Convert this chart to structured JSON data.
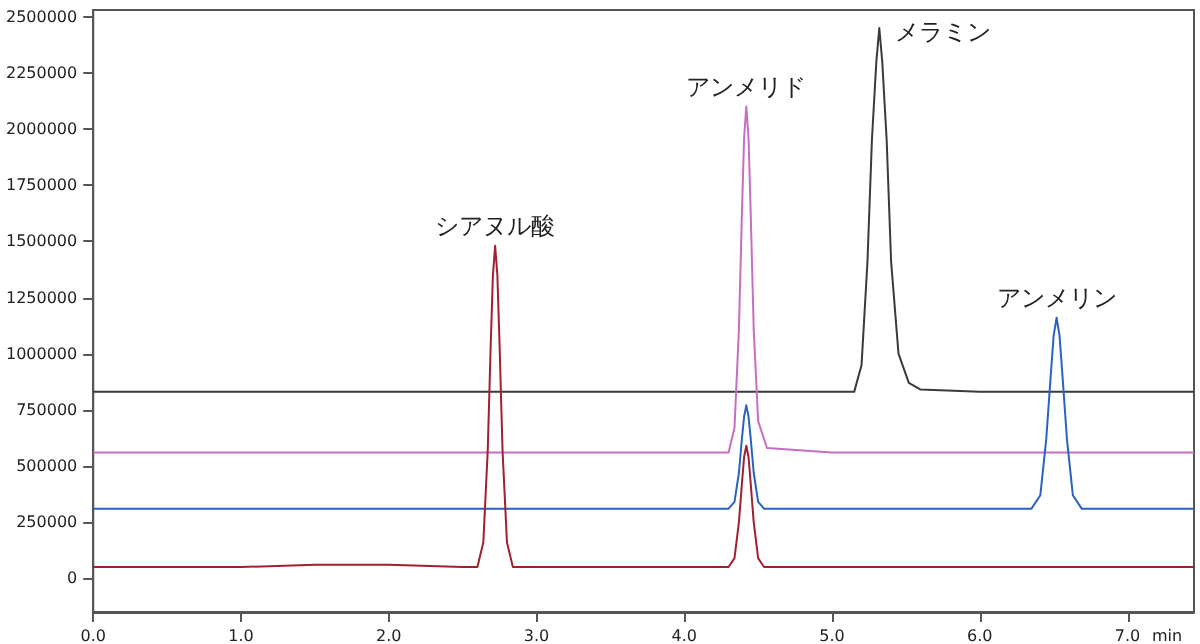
{
  "chart_data": {
    "type": "line",
    "xlabel": "min",
    "xlim": [
      0,
      7.45
    ],
    "xticks": [
      {
        "value": 0,
        "label": "0.0"
      },
      {
        "value": 1,
        "label": "1.0"
      },
      {
        "value": 2,
        "label": "2.0"
      },
      {
        "value": 3,
        "label": "3.0"
      },
      {
        "value": 4,
        "label": "4.0"
      },
      {
        "value": 5,
        "label": "5.0"
      },
      {
        "value": 6,
        "label": "6.0"
      },
      {
        "value": 7,
        "label": "7.0"
      }
    ],
    "ylim": [
      -150000,
      2530000
    ],
    "yticks": [
      0,
      250000,
      500000,
      750000,
      1000000,
      1250000,
      1500000,
      1750000,
      2000000,
      2250000,
      2500000
    ],
    "marker": "none",
    "line_style": "solid",
    "series": [
      {
        "color": "#3a3a3a",
        "x": [
          0,
          1,
          2,
          3,
          4,
          5,
          5.15,
          5.2,
          5.24,
          5.27,
          5.3,
          5.32,
          5.34,
          5.37,
          5.4,
          5.45,
          5.52,
          5.6,
          6,
          7,
          7.45
        ],
        "values": [
          830000,
          830000,
          830000,
          830000,
          830000,
          830000,
          830000,
          950000,
          1410000,
          1950000,
          2300000,
          2450000,
          2300000,
          1950000,
          1410000,
          1000000,
          870000,
          840000,
          830000,
          830000,
          830000
        ]
      },
      {
        "color": "#c86ec0",
        "x": [
          0,
          1,
          2,
          3,
          4,
          4.3,
          4.34,
          4.37,
          4.39,
          4.405,
          4.42,
          4.435,
          4.45,
          4.47,
          4.5,
          4.56,
          5,
          6,
          7,
          7.45
        ],
        "values": [
          560000,
          560000,
          560000,
          560000,
          560000,
          560000,
          670000,
          1110000,
          1620000,
          1960000,
          2100000,
          1960000,
          1620000,
          1110000,
          700000,
          580000,
          560000,
          560000,
          560000,
          560000
        ]
      },
      {
        "color": "#2a62c0",
        "x": [
          0,
          1,
          2,
          3,
          4,
          4.3,
          4.34,
          4.37,
          4.39,
          4.405,
          4.42,
          4.435,
          4.45,
          4.47,
          4.5,
          4.54,
          5,
          6,
          6.35,
          6.41,
          6.45,
          6.48,
          6.5,
          6.52,
          6.54,
          6.56,
          6.59,
          6.63,
          6.69,
          7,
          7.45
        ],
        "values": [
          310000,
          310000,
          310000,
          310000,
          310000,
          310000,
          340000,
          470000,
          620000,
          720000,
          770000,
          720000,
          620000,
          470000,
          340000,
          310000,
          310000,
          310000,
          310000,
          370000,
          620000,
          900000,
          1080000,
          1160000,
          1080000,
          900000,
          620000,
          370000,
          310000,
          310000,
          310000
        ]
      },
      {
        "color": "#a02030",
        "x": [
          0,
          0.5,
          1,
          1.5,
          2,
          2.5,
          2.6,
          2.64,
          2.67,
          2.69,
          2.705,
          2.72,
          2.735,
          2.75,
          2.77,
          2.8,
          2.84,
          3,
          3.5,
          4,
          4.3,
          4.34,
          4.37,
          4.39,
          4.405,
          4.42,
          4.435,
          4.45,
          4.47,
          4.5,
          4.54,
          5,
          6,
          7,
          7.45
        ],
        "values": [
          50000,
          50000,
          50000,
          60000,
          60000,
          50000,
          50000,
          160000,
          570000,
          1040000,
          1350000,
          1480000,
          1350000,
          1040000,
          570000,
          160000,
          50000,
          50000,
          50000,
          50000,
          50000,
          90000,
          250000,
          420000,
          540000,
          590000,
          540000,
          420000,
          250000,
          90000,
          50000,
          50000,
          50000,
          50000,
          50000
        ]
      }
    ],
    "annotations": [
      {
        "text": "シアヌル酸",
        "x": 2.72,
        "y": 1480000
      },
      {
        "text": "アンメリド",
        "x": 4.42,
        "y": 2100000
      },
      {
        "text": "メラミン",
        "x": 5.32,
        "y": 2450000
      },
      {
        "text": "アンメリン",
        "x": 6.52,
        "y": 1160000
      }
    ]
  }
}
